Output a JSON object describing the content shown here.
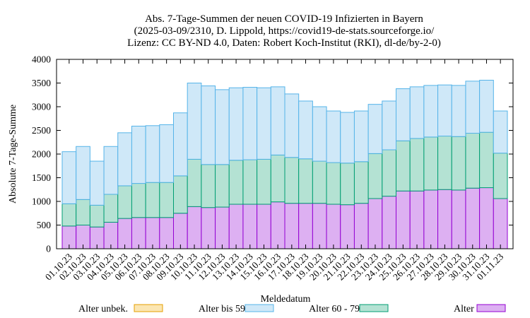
{
  "chart_data": {
    "type": "bar",
    "stacked": true,
    "title_lines": [
      "Abs. 7-Tage-Summen der neuen COVID-19 Infizierten in Bayern",
      "(2025-03-09/2310, D. Lippold, https://covid19-de-stats.sourceforge.io/",
      "Lizenz: CC BY-ND 4.0, Daten: Robert Koch-Institut (RKI), dl-de/by-2-0)"
    ],
    "xlabel": "Meldedatum",
    "ylabel": "Absolute 7-Tage-Summe",
    "ylim": [
      0,
      4000
    ],
    "yticks": [
      0,
      500,
      1000,
      1500,
      2000,
      2500,
      3000,
      3500,
      4000
    ],
    "ytick_labels": [
      "0",
      "500",
      "1000",
      "1500",
      "2000",
      "2500",
      "3000",
      "3500",
      "4000"
    ],
    "categories": [
      "01.10.23",
      "02.10.23",
      "03.10.23",
      "04.10.23",
      "05.10.23",
      "06.10.23",
      "07.10.23",
      "08.10.23",
      "09.10.23",
      "10.10.23",
      "11.10.23",
      "12.10.23",
      "13.10.23",
      "14.10.23",
      "15.10.23",
      "16.10.23",
      "17.10.23",
      "18.10.23",
      "19.10.23",
      "20.10.23",
      "21.10.23",
      "22.10.23",
      "23.10.23",
      "24.10.23",
      "25.10.23",
      "26.10.23",
      "27.10.23",
      "28.10.23",
      "29.10.23",
      "30.10.23",
      "31.10.23",
      "01.11.23"
    ],
    "series": [
      {
        "name": "Alter ab 80",
        "color": "#ddb0f2",
        "edge": "#9400d3",
        "values": [
          480,
          500,
          460,
          560,
          640,
          660,
          660,
          660,
          750,
          890,
          870,
          880,
          940,
          940,
          940,
          990,
          960,
          960,
          960,
          940,
          930,
          960,
          1060,
          1110,
          1220,
          1220,
          1240,
          1250,
          1240,
          1280,
          1290,
          1060
        ]
      },
      {
        "name": "Alter 60 - 79",
        "color": "#b4e2d3",
        "edge": "#009e73",
        "values": [
          470,
          540,
          460,
          590,
          690,
          720,
          740,
          740,
          790,
          1000,
          910,
          900,
          930,
          940,
          950,
          990,
          970,
          940,
          890,
          880,
          880,
          880,
          950,
          980,
          1060,
          1110,
          1120,
          1130,
          1130,
          1160,
          1170,
          960
        ]
      },
      {
        "name": "Alter bis 59",
        "color": "#cfe8f8",
        "edge": "#56b4e9",
        "values": [
          1100,
          1120,
          930,
          1010,
          1120,
          1210,
          1200,
          1220,
          1330,
          1610,
          1660,
          1580,
          1530,
          1530,
          1510,
          1440,
          1340,
          1220,
          1150,
          1090,
          1070,
          1070,
          1040,
          1030,
          1100,
          1090,
          1090,
          1080,
          1080,
          1100,
          1100,
          890
        ]
      },
      {
        "name": "Alter unbek.",
        "color": "#fbe6b2",
        "edge": "#e69f00",
        "values": [
          0,
          0,
          0,
          0,
          0,
          0,
          0,
          0,
          0,
          0,
          0,
          0,
          0,
          0,
          0,
          0,
          0,
          0,
          0,
          0,
          0,
          0,
          0,
          0,
          0,
          0,
          0,
          0,
          0,
          0,
          0,
          0
        ]
      }
    ],
    "legend_order": [
      "Alter unbek.",
      "Alter bis 59",
      "Alter 60 - 79",
      "Alter ab 80"
    ],
    "legend_position": "bottom",
    "grid": false
  }
}
